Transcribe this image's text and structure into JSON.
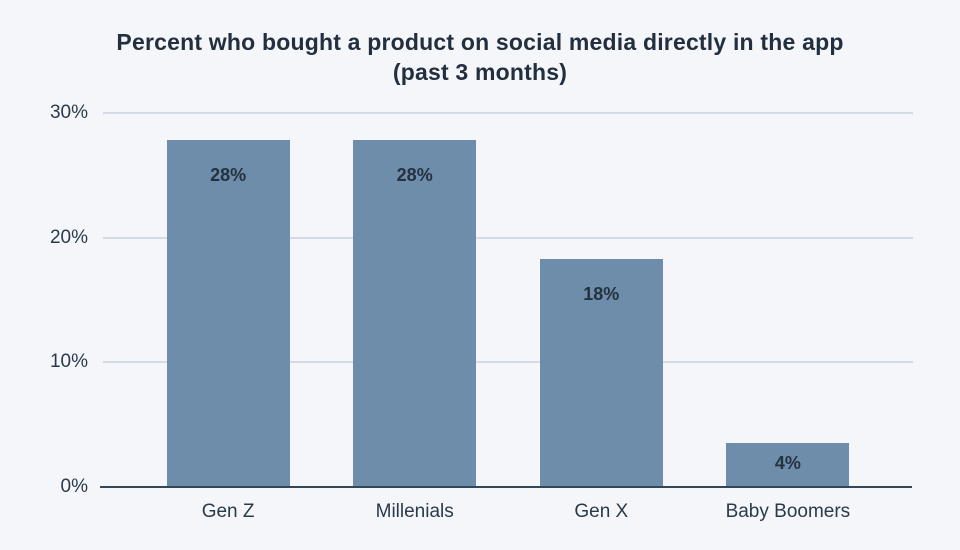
{
  "page": {
    "background_color": "#F5F6FA"
  },
  "chart_data": {
    "type": "bar",
    "title": "Percent who bought a product on social media directly in the app (past 3 months)",
    "title_lines": [
      "Percent who bought a product on social media directly in the app",
      "(past 3 months)"
    ],
    "categories": [
      "Gen Z",
      "Millenials",
      "Gen X",
      "Baby Boomers"
    ],
    "values": [
      28,
      28,
      18,
      4
    ],
    "data_labels": [
      "28%",
      "28%",
      "18%",
      "4%"
    ],
    "bar_heights_pct_estimate": [
      27.8,
      27.8,
      18.3,
      3.5
    ],
    "xlabel": "",
    "ylabel": "",
    "ylim": [
      0,
      30
    ],
    "y_ticks": [
      {
        "value": 0,
        "label": "0%"
      },
      {
        "value": 10,
        "label": "10%"
      },
      {
        "value": 20,
        "label": "20%"
      },
      {
        "value": 30,
        "label": "30%"
      }
    ],
    "grid": "horizontal gridlines at y ticks, light; baseline darker",
    "legend": "none",
    "colors": {
      "bar": "#6E8DAA",
      "title_text": "#222F3E",
      "axis_text": "#2B3A4A",
      "data_label_text": "#243240",
      "gridline": "#D5DBE5",
      "axis_line": "#33475B",
      "background": "#F5F6FA"
    }
  }
}
